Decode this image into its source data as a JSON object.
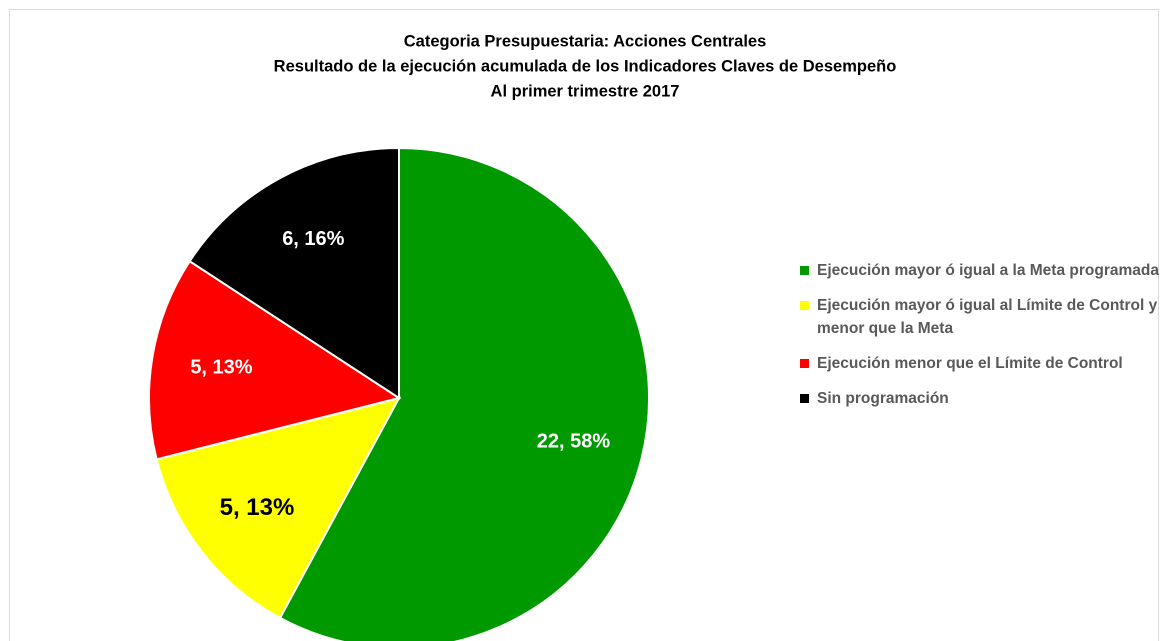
{
  "chart_data": {
    "type": "pie",
    "title": [
      "Categoria Presupuestaria: Acciones Centrales",
      "Resultado de la ejecución  acumulada de los Indicadores Claves de Desempeño",
      "Al  primer trimestre 2017"
    ],
    "categories": [
      "Ejecución mayor ó igual a la Meta programada",
      "Ejecución mayor ó igual al Límite de Control y menor que la Meta",
      "Ejecución menor que el Límite de Control",
      "Sin programación"
    ],
    "values": [
      22,
      5,
      5,
      6
    ],
    "value_labels": [
      "22, 58%",
      "5, 13%",
      "5, 13%",
      "6, 16%"
    ],
    "colors": [
      "#009900",
      "#ffff00",
      "#ff0000",
      "#000000"
    ],
    "legend": "right"
  }
}
